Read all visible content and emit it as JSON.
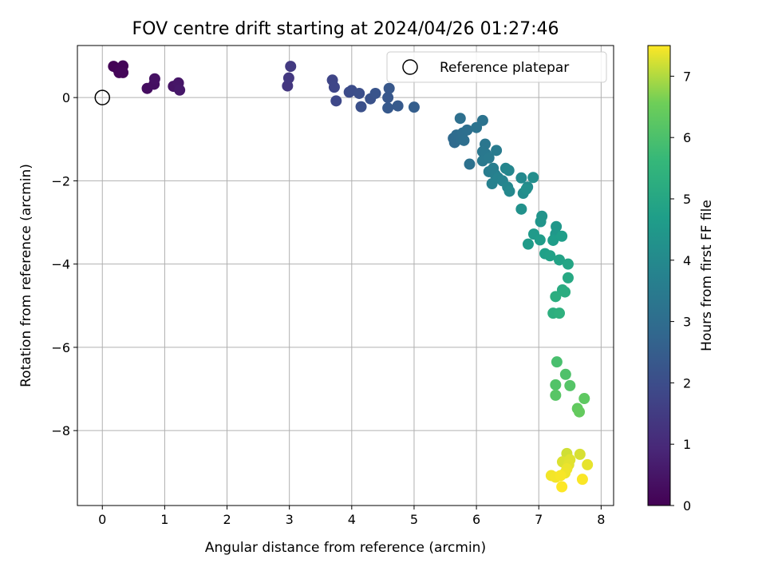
{
  "chart_data": {
    "type": "scatter",
    "title": "FOV centre drift starting at 2024/04/26 01:27:46",
    "xlabel": "Angular distance from reference (arcmin)",
    "ylabel": "Rotation from reference (arcmin)",
    "xlim": [
      -0.4,
      8.2
    ],
    "ylim": [
      -9.8,
      1.25
    ],
    "x_ticks": [
      "0",
      "1",
      "2",
      "3",
      "4",
      "5",
      "6",
      "7",
      "8"
    ],
    "y_ticks": [
      "0",
      "−2",
      "−4",
      "−6",
      "−8"
    ],
    "grid": true,
    "legend": {
      "position": "top-right",
      "entries": [
        "Reference platepar"
      ]
    },
    "reference": {
      "x": 0,
      "y": 0
    },
    "colorbar": {
      "label": "Hours from first FF file",
      "min": 0,
      "max": 7.5,
      "ticks": [
        "0",
        "1",
        "2",
        "3",
        "4",
        "5",
        "6",
        "7"
      ],
      "colormap": "viridis"
    },
    "series": [
      {
        "points": [
          {
            "x": 0.18,
            "y": 0.75,
            "h": 0.05
          },
          {
            "x": 0.25,
            "y": 0.68,
            "h": 0.08
          },
          {
            "x": 0.33,
            "y": 0.76,
            "h": 0.1
          },
          {
            "x": 0.27,
            "y": 0.6,
            "h": 0.12
          },
          {
            "x": 0.33,
            "y": 0.6,
            "h": 0.14
          },
          {
            "x": 0.72,
            "y": 0.22,
            "h": 0.3
          },
          {
            "x": 0.83,
            "y": 0.32,
            "h": 0.35
          },
          {
            "x": 0.84,
            "y": 0.45,
            "h": 0.38
          },
          {
            "x": 1.14,
            "y": 0.27,
            "h": 0.45
          },
          {
            "x": 1.22,
            "y": 0.35,
            "h": 0.5
          },
          {
            "x": 1.24,
            "y": 0.18,
            "h": 0.55
          },
          {
            "x": 2.97,
            "y": 0.28,
            "h": 1.35
          },
          {
            "x": 2.99,
            "y": 0.47,
            "h": 1.4
          },
          {
            "x": 3.02,
            "y": 0.75,
            "h": 1.45
          },
          {
            "x": 3.69,
            "y": 0.42,
            "h": 1.75
          },
          {
            "x": 3.72,
            "y": 0.25,
            "h": 1.8
          },
          {
            "x": 3.75,
            "y": -0.08,
            "h": 1.85
          },
          {
            "x": 3.96,
            "y": 0.13,
            "h": 1.95
          },
          {
            "x": 4.0,
            "y": 0.17,
            "h": 2.0
          },
          {
            "x": 4.12,
            "y": 0.1,
            "h": 2.05
          },
          {
            "x": 4.15,
            "y": -0.22,
            "h": 2.1
          },
          {
            "x": 4.3,
            "y": -0.03,
            "h": 2.15
          },
          {
            "x": 4.38,
            "y": 0.1,
            "h": 2.2
          },
          {
            "x": 4.58,
            "y": 0.0,
            "h": 2.3
          },
          {
            "x": 4.6,
            "y": 0.22,
            "h": 2.32
          },
          {
            "x": 4.58,
            "y": -0.25,
            "h": 2.35
          },
          {
            "x": 4.74,
            "y": -0.2,
            "h": 2.4
          },
          {
            "x": 5.0,
            "y": -0.23,
            "h": 2.5
          },
          {
            "x": 5.63,
            "y": -0.98,
            "h": 2.9
          },
          {
            "x": 5.65,
            "y": -1.08,
            "h": 2.92
          },
          {
            "x": 5.68,
            "y": -0.9,
            "h": 2.95
          },
          {
            "x": 5.72,
            "y": -0.95,
            "h": 2.97
          },
          {
            "x": 5.75,
            "y": -1.0,
            "h": 3.0
          },
          {
            "x": 5.78,
            "y": -0.85,
            "h": 3.02
          },
          {
            "x": 5.8,
            "y": -1.03,
            "h": 3.05
          },
          {
            "x": 5.85,
            "y": -0.78,
            "h": 3.07
          },
          {
            "x": 5.74,
            "y": -0.5,
            "h": 3.1
          },
          {
            "x": 5.89,
            "y": -1.6,
            "h": 3.15
          },
          {
            "x": 6.0,
            "y": -0.72,
            "h": 3.2
          },
          {
            "x": 6.1,
            "y": -0.55,
            "h": 3.22
          },
          {
            "x": 6.14,
            "y": -1.12,
            "h": 3.3
          },
          {
            "x": 6.1,
            "y": -1.3,
            "h": 3.35
          },
          {
            "x": 6.15,
            "y": -1.35,
            "h": 3.4
          },
          {
            "x": 6.1,
            "y": -1.52,
            "h": 3.42
          },
          {
            "x": 6.2,
            "y": -1.45,
            "h": 3.45
          },
          {
            "x": 6.32,
            "y": -1.27,
            "h": 3.5
          },
          {
            "x": 6.2,
            "y": -1.78,
            "h": 3.55
          },
          {
            "x": 6.27,
            "y": -1.7,
            "h": 3.6
          },
          {
            "x": 6.3,
            "y": -1.85,
            "h": 3.65
          },
          {
            "x": 6.25,
            "y": -2.07,
            "h": 3.7
          },
          {
            "x": 6.35,
            "y": -1.93,
            "h": 3.75
          },
          {
            "x": 6.42,
            "y": -2.0,
            "h": 3.8
          },
          {
            "x": 6.47,
            "y": -1.7,
            "h": 3.85
          },
          {
            "x": 6.52,
            "y": -1.75,
            "h": 3.88
          },
          {
            "x": 6.5,
            "y": -2.15,
            "h": 3.9
          },
          {
            "x": 6.53,
            "y": -2.25,
            "h": 3.95
          },
          {
            "x": 6.72,
            "y": -1.93,
            "h": 4.0
          },
          {
            "x": 6.82,
            "y": -2.15,
            "h": 4.05
          },
          {
            "x": 6.75,
            "y": -2.3,
            "h": 4.1
          },
          {
            "x": 6.91,
            "y": -1.92,
            "h": 4.15
          },
          {
            "x": 6.72,
            "y": -2.68,
            "h": 4.25
          },
          {
            "x": 6.8,
            "y": -2.2,
            "h": 4.2
          },
          {
            "x": 7.05,
            "y": -2.85,
            "h": 4.35
          },
          {
            "x": 7.03,
            "y": -2.98,
            "h": 4.4
          },
          {
            "x": 7.28,
            "y": -3.1,
            "h": 4.45
          },
          {
            "x": 7.27,
            "y": -3.28,
            "h": 4.5
          },
          {
            "x": 6.92,
            "y": -3.28,
            "h": 4.55
          },
          {
            "x": 6.83,
            "y": -3.52,
            "h": 4.6
          },
          {
            "x": 7.02,
            "y": -3.42,
            "h": 4.62
          },
          {
            "x": 7.23,
            "y": -3.43,
            "h": 4.65
          },
          {
            "x": 7.37,
            "y": -3.33,
            "h": 4.7
          },
          {
            "x": 7.1,
            "y": -3.75,
            "h": 4.75
          },
          {
            "x": 7.18,
            "y": -3.8,
            "h": 4.8
          },
          {
            "x": 7.33,
            "y": -3.9,
            "h": 4.85
          },
          {
            "x": 7.47,
            "y": -4.0,
            "h": 4.95
          },
          {
            "x": 7.47,
            "y": -4.33,
            "h": 5.05
          },
          {
            "x": 7.38,
            "y": -4.62,
            "h": 5.15
          },
          {
            "x": 7.42,
            "y": -4.67,
            "h": 5.2
          },
          {
            "x": 7.27,
            "y": -4.78,
            "h": 5.25
          },
          {
            "x": 7.23,
            "y": -5.18,
            "h": 5.3
          },
          {
            "x": 7.33,
            "y": -5.18,
            "h": 5.35
          },
          {
            "x": 7.29,
            "y": -6.35,
            "h": 5.95
          },
          {
            "x": 7.43,
            "y": -6.65,
            "h": 6.05
          },
          {
            "x": 7.27,
            "y": -6.9,
            "h": 6.1
          },
          {
            "x": 7.5,
            "y": -6.92,
            "h": 6.15
          },
          {
            "x": 7.27,
            "y": -7.15,
            "h": 6.2
          },
          {
            "x": 7.73,
            "y": -7.23,
            "h": 6.3
          },
          {
            "x": 7.62,
            "y": -7.47,
            "h": 6.35
          },
          {
            "x": 7.65,
            "y": -7.55,
            "h": 6.4
          },
          {
            "x": 7.45,
            "y": -8.55,
            "h": 7.2
          },
          {
            "x": 7.66,
            "y": -8.57,
            "h": 7.25
          },
          {
            "x": 7.38,
            "y": -8.75,
            "h": 7.28
          },
          {
            "x": 7.5,
            "y": -8.7,
            "h": 7.3
          },
          {
            "x": 7.48,
            "y": -8.82,
            "h": 7.32
          },
          {
            "x": 7.78,
            "y": -8.82,
            "h": 7.35
          },
          {
            "x": 7.45,
            "y": -8.92,
            "h": 7.38
          },
          {
            "x": 7.42,
            "y": -9.02,
            "h": 7.4
          },
          {
            "x": 7.2,
            "y": -9.08,
            "h": 7.42
          },
          {
            "x": 7.27,
            "y": -9.12,
            "h": 7.44
          },
          {
            "x": 7.35,
            "y": -9.08,
            "h": 7.46
          },
          {
            "x": 7.7,
            "y": -9.17,
            "h": 7.48
          },
          {
            "x": 7.37,
            "y": -9.35,
            "h": 7.5
          }
        ]
      }
    ]
  }
}
